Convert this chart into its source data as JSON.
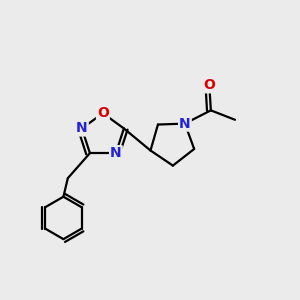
{
  "background_color": "#ebebeb",
  "bond_color": "#000000",
  "N_color": "#2222dd",
  "O_color": "#dd0000",
  "line_width": 1.6,
  "font_size_atoms": 10,
  "figsize": [
    3.0,
    3.0
  ],
  "dpi": 100,
  "xlim": [
    0.0,
    1.0
  ],
  "ylim": [
    0.05,
    1.05
  ]
}
